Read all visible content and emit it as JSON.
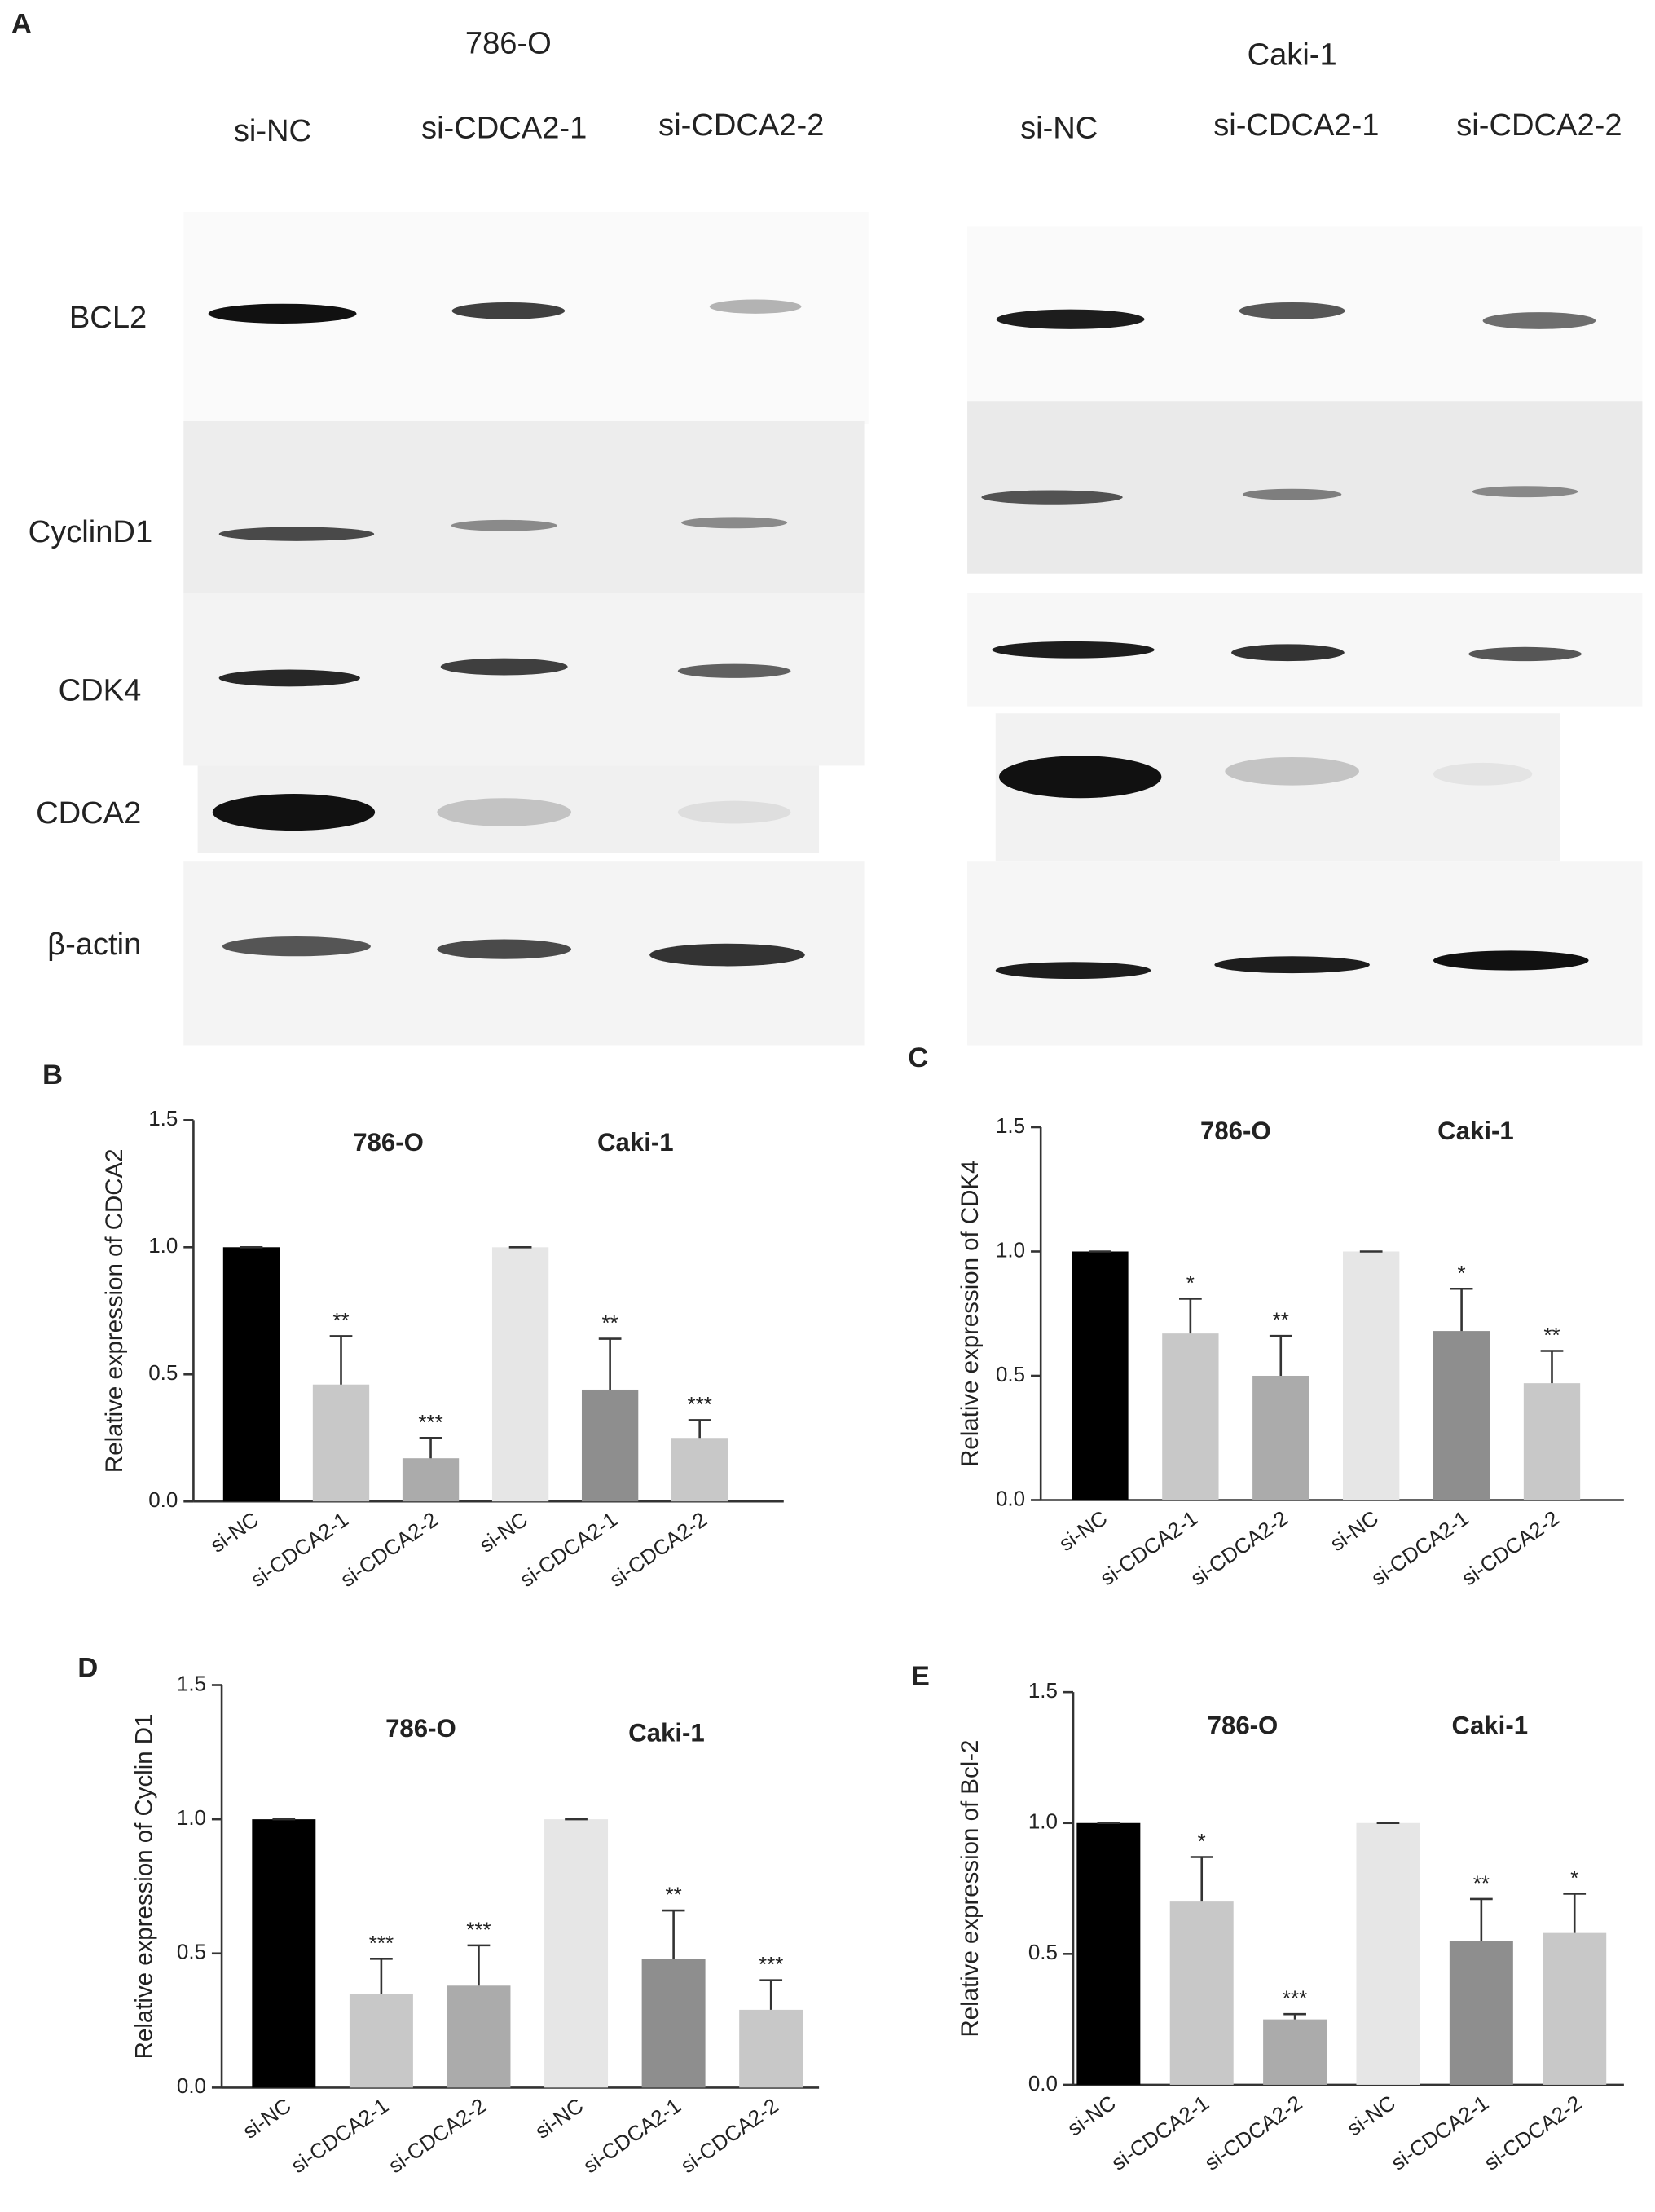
{
  "panel_a": {
    "label": "A",
    "cell_lines": [
      "786-O",
      "Caki-1"
    ],
    "lanes": [
      [
        "si-NC",
        "si-CDCA2-1",
        "si-CDCA2-2"
      ],
      [
        "si-NC",
        "si-CDCA2-1",
        "si-CDCA2-2"
      ]
    ],
    "proteins": [
      "BCL2",
      "CyclinD1",
      "CDK4",
      "CDCA2",
      "β-actin"
    ]
  },
  "chart_data": [
    {
      "type": "bar",
      "panel": "B",
      "ylabel": "Relative expression of CDCA2",
      "annotations": [
        "786-O",
        "Caki-1"
      ],
      "categories": [
        "si-NC",
        "si-CDCA2-1",
        "si-CDCA2-2",
        "si-NC",
        "si-CDCA2-1",
        "si-CDCA2-2"
      ],
      "values": [
        1,
        0.46,
        0.17,
        1,
        0.44,
        0.25
      ],
      "errors": [
        0,
        0.19,
        0.08,
        0,
        0.2,
        0.07
      ],
      "significance": [
        null,
        "**",
        "***",
        null,
        "**",
        "***"
      ],
      "colors": [
        "#000000",
        "#c8c8c8",
        "#ababab",
        "#e6e6e6",
        "#8e8e8e",
        "#c8c8c8"
      ],
      "ylim": [
        0,
        1.5
      ],
      "yticks": [
        {
          "value": 0,
          "label": "0.0"
        },
        0.5,
        {
          "value": 1,
          "label": "1.0"
        },
        1.5
      ]
    },
    {
      "type": "bar",
      "panel": "C",
      "ylabel": "Relative expression of CDK4",
      "annotations": [
        "786-O",
        "Caki-1"
      ],
      "categories": [
        "si-NC",
        "si-CDCA2-1",
        "si-CDCA2-2",
        "si-NC",
        "si-CDCA2-1",
        "si-CDCA2-2"
      ],
      "values": [
        1,
        0.67,
        0.5,
        1,
        0.68,
        0.47
      ],
      "errors": [
        0,
        0.14,
        0.16,
        0,
        0.17,
        0.13
      ],
      "significance": [
        null,
        "*",
        "**",
        null,
        "*",
        "**"
      ],
      "colors": [
        "#000000",
        "#c8c8c8",
        "#ababab",
        "#e6e6e6",
        "#8e8e8e",
        "#c8c8c8"
      ],
      "ylim": [
        0,
        1.5
      ],
      "yticks": [
        {
          "value": 0,
          "label": "0.0"
        },
        0.5,
        {
          "value": 1,
          "label": "1.0"
        },
        1.5
      ]
    },
    {
      "type": "bar",
      "panel": "D",
      "ylabel": "Relative expression of Cyclin D1",
      "annotations": [
        "786-O",
        "Caki-1"
      ],
      "categories": [
        "si-NC",
        "si-CDCA2-1",
        "si-CDCA2-2",
        "si-NC",
        "si-CDCA2-1",
        "si-CDCA2-2"
      ],
      "values": [
        1,
        0.35,
        0.38,
        1,
        0.48,
        0.29
      ],
      "errors": [
        0,
        0.13,
        0.15,
        0,
        0.18,
        0.11
      ],
      "significance": [
        null,
        "***",
        "***",
        null,
        "**",
        "***"
      ],
      "colors": [
        "#000000",
        "#c8c8c8",
        "#ababab",
        "#e6e6e6",
        "#8e8e8e",
        "#c8c8c8"
      ],
      "ylim": [
        0,
        1.5
      ],
      "yticks": [
        {
          "value": 0,
          "label": "0.0"
        },
        0.5,
        {
          "value": 1,
          "label": "1.0"
        },
        1.5
      ]
    },
    {
      "type": "bar",
      "panel": "E",
      "ylabel": "Relative expression of Bcl-2",
      "annotations": [
        "786-O",
        "Caki-1"
      ],
      "categories": [
        "si-NC",
        "si-CDCA2-1",
        "si-CDCA2-2",
        "si-NC",
        "si-CDCA2-1",
        "si-CDCA2-2"
      ],
      "values": [
        1,
        0.7,
        0.25,
        1,
        0.55,
        0.58
      ],
      "errors": [
        0,
        0.17,
        0.02,
        0,
        0.16,
        0.15
      ],
      "significance": [
        null,
        "*",
        "***",
        null,
        "**",
        "*"
      ],
      "colors": [
        "#000000",
        "#c8c8c8",
        "#ababab",
        "#e6e6e6",
        "#8e8e8e",
        "#c8c8c8"
      ],
      "ylim": [
        0,
        1.5
      ],
      "yticks": [
        {
          "value": 0,
          "label": "0.0"
        },
        0.5,
        {
          "value": 1,
          "label": "1.0"
        },
        1.5
      ]
    }
  ]
}
